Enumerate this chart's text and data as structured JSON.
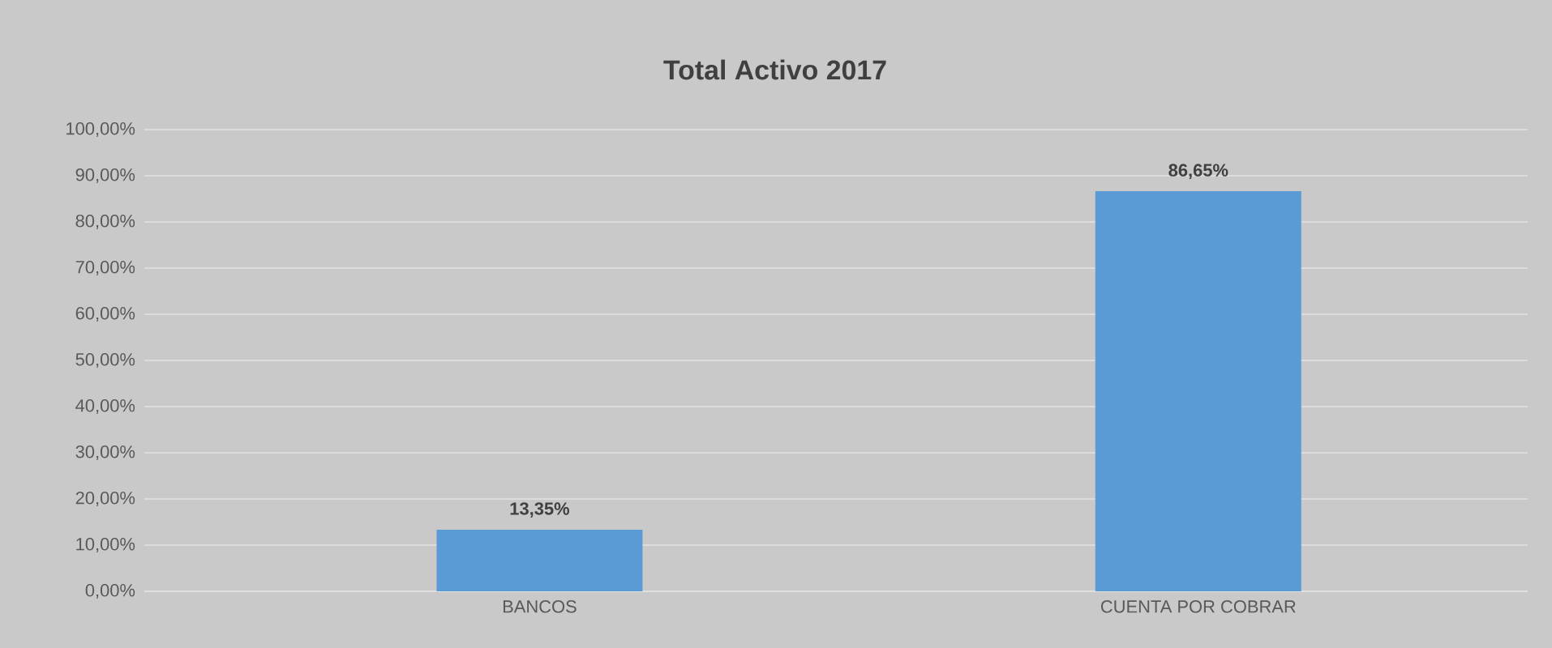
{
  "chart_data": {
    "type": "bar",
    "title": "Total Activo 2017",
    "categories": [
      "BANCOS",
      "CUENTA POR COBRAR"
    ],
    "values": [
      13.35,
      86.65
    ],
    "value_labels": [
      "13,35%",
      "86,65%"
    ],
    "color": "#5b9bd5",
    "ylim": [
      0,
      100
    ],
    "yticks": [
      {
        "value": 0,
        "label": "0,00%"
      },
      {
        "value": 10,
        "label": "10,00%"
      },
      {
        "value": 20,
        "label": "20,00%"
      },
      {
        "value": 30,
        "label": "30,00%"
      },
      {
        "value": 40,
        "label": "40,00%"
      },
      {
        "value": 50,
        "label": "50,00%"
      },
      {
        "value": 60,
        "label": "60,00%"
      },
      {
        "value": 70,
        "label": "70,00%"
      },
      {
        "value": 80,
        "label": "80,00%"
      },
      {
        "value": 90,
        "label": "90,00%"
      },
      {
        "value": 100,
        "label": "100,00%"
      }
    ],
    "grid": "y"
  }
}
